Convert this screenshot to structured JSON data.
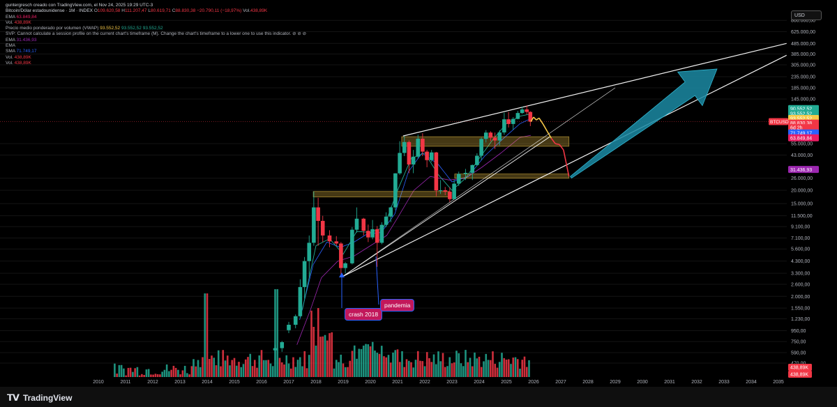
{
  "header": {
    "author_line": "guntergresch creado con TradingView.com, el Nov 24, 2025 19:29 UTC-3",
    "symbol": "Bitcoin/Dólar estadounidense · 1M · INDEX",
    "ohlc": {
      "o_key": "O",
      "o": "109.620,58",
      "h_key": "H",
      "h": "111.207,47",
      "l_key": "L",
      "l": "80.619,71",
      "c_key": "C",
      "c": "88.830,38",
      "chg": "−20.790,11 (−18,97%)",
      "vol_key": "Vol.",
      "vol": "438,89K"
    }
  },
  "indicators": {
    "ema1_key": "EMA",
    "ema1_val": "63.849,84",
    "vol1_key": "Vol.",
    "vol1_val": "438,89K",
    "vwap_key": "Precio medio ponderado por volumen (VWAP)",
    "vwap_v1": "93.552,52",
    "vwap_v2": "93.552,52",
    "vwap_v3": "93.552,52",
    "svp_text": "SVP: Cannot calculate a session profile on the current chart's timeframe (M). Change the chart's timeframe to a lower one to use this indicator.",
    "svp_icons": "⊘ ⊘ ⊘",
    "ema2_key": "EMA",
    "ema2_val": "31.436,93",
    "ema3_key": "EMA",
    "sma_key": "SMA",
    "sma_val": "71.749,17",
    "vol2_key": "Vol.",
    "vol2_val": "438,89K",
    "vol3_key": "Vol.",
    "vol3_val": "438,89K"
  },
  "currency_label": "USD",
  "brand": "TradingView",
  "annotations": {
    "crash": "crash 2018",
    "pandemic": "pandemia"
  },
  "colors": {
    "up": "#22ab94",
    "down": "#f23645",
    "zone": "#f7c948",
    "arrow": "#1b8aa3",
    "background": "#000000"
  },
  "chart_data": {
    "type": "candlestick",
    "title": "",
    "yscale": "log",
    "x_ticks": [
      "2010",
      "2011",
      "2012",
      "2013",
      "2014",
      "2015",
      "2016",
      "2017",
      "2018",
      "2019",
      "2020",
      "2021",
      "2022",
      "2023",
      "2024",
      "2025",
      "2026",
      "2027",
      "2028",
      "2029",
      "2030",
      "2031",
      "2032",
      "2033",
      "2034",
      "2035"
    ],
    "y_ticks": [
      "800.000,00",
      "625.000,00",
      "485.000,00",
      "385.000,00",
      "305.000,00",
      "235.000,00",
      "185.000,00",
      "145.000,00",
      "55.000,00",
      "43.000,00",
      "26.000,00",
      "20.000,00",
      "15.000,00",
      "11.500,00",
      "9.100,00",
      "7.100,00",
      "5.600,00",
      "4.300,00",
      "3.300,00",
      "2.600,00",
      "2.000,00",
      "1.550,00",
      "1.230,00",
      "950,00",
      "750,00",
      "590,00",
      "470,00"
    ],
    "y_tick_values": [
      800000,
      625000,
      485000,
      385000,
      305000,
      235000,
      185000,
      145000,
      55000,
      43000,
      26000,
      20000,
      15000,
      11500,
      9100,
      7100,
      5600,
      4300,
      3300,
      2600,
      2000,
      1550,
      1230,
      950,
      750,
      590,
      470
    ],
    "price_labels": [
      {
        "text": "90.552,52",
        "value": 118000,
        "color": "#22ab94"
      },
      {
        "text": "93.552,52",
        "value": 106000,
        "color": "#22ab94"
      },
      {
        "text": "93.552,52",
        "value": 95000,
        "color": "#f7c948"
      },
      {
        "text": "88.830,38",
        "value": 86000,
        "color": "#f23645"
      },
      {
        "text": "6d 2h",
        "value": 78000,
        "color": "#f23645"
      },
      {
        "text": "71.749,17",
        "value": 69500,
        "color": "#2962ff"
      },
      {
        "text": "63.849,84",
        "value": 62500,
        "color": "#e91e63"
      },
      {
        "text": "31.436,93",
        "value": 31436.93,
        "color": "#9c27b0"
      }
    ],
    "volume_labels": [
      "438,89K",
      "438,89K"
    ],
    "symbol_tag": "BTCUSD",
    "last_price": 88830.38,
    "candles": [
      {
        "t": 2016.5,
        "o": 620,
        "h": 700,
        "l": 500,
        "c": 650
      },
      {
        "t": 2016.75,
        "o": 650,
        "h": 760,
        "l": 600,
        "c": 740
      },
      {
        "t": 2017.0,
        "o": 960,
        "h": 1150,
        "l": 900,
        "c": 1080
      },
      {
        "t": 2017.25,
        "o": 1080,
        "h": 1350,
        "l": 1000,
        "c": 1300
      },
      {
        "t": 2017.42,
        "o": 1300,
        "h": 2900,
        "l": 1250,
        "c": 2450
      },
      {
        "t": 2017.58,
        "o": 2450,
        "h": 4700,
        "l": 1900,
        "c": 4300
      },
      {
        "t": 2017.75,
        "o": 4300,
        "h": 7500,
        "l": 3000,
        "c": 6400
      },
      {
        "t": 2017.92,
        "o": 6400,
        "h": 19500,
        "l": 6000,
        "c": 13800
      },
      {
        "t": 2018.08,
        "o": 13800,
        "h": 17000,
        "l": 6000,
        "c": 10300
      },
      {
        "t": 2018.25,
        "o": 10300,
        "h": 11500,
        "l": 6500,
        "c": 7500
      },
      {
        "t": 2018.5,
        "o": 7500,
        "h": 8400,
        "l": 5800,
        "c": 6600
      },
      {
        "t": 2018.75,
        "o": 6600,
        "h": 7400,
        "l": 6000,
        "c": 6300
      },
      {
        "t": 2018.92,
        "o": 6300,
        "h": 6500,
        "l": 3150,
        "c": 3700
      },
      {
        "t": 2019.08,
        "o": 3700,
        "h": 4200,
        "l": 3300,
        "c": 4100
      },
      {
        "t": 2019.33,
        "o": 4100,
        "h": 9000,
        "l": 4000,
        "c": 8500
      },
      {
        "t": 2019.5,
        "o": 8500,
        "h": 13800,
        "l": 8000,
        "c": 10800
      },
      {
        "t": 2019.75,
        "o": 10800,
        "h": 11000,
        "l": 7500,
        "c": 8300
      },
      {
        "t": 2019.92,
        "o": 8300,
        "h": 9500,
        "l": 6500,
        "c": 7200
      },
      {
        "t": 2020.08,
        "o": 7200,
        "h": 10500,
        "l": 6900,
        "c": 8600
      },
      {
        "t": 2020.25,
        "o": 8600,
        "h": 9200,
        "l": 3800,
        "c": 6400
      },
      {
        "t": 2020.42,
        "o": 6400,
        "h": 10000,
        "l": 6200,
        "c": 9450
      },
      {
        "t": 2020.58,
        "o": 9450,
        "h": 12400,
        "l": 9000,
        "c": 11300
      },
      {
        "t": 2020.75,
        "o": 11300,
        "h": 14000,
        "l": 10000,
        "c": 13800
      },
      {
        "t": 2020.92,
        "o": 13800,
        "h": 29000,
        "l": 13000,
        "c": 28900
      },
      {
        "t": 2021.08,
        "o": 28900,
        "h": 58000,
        "l": 28000,
        "c": 45000
      },
      {
        "t": 2021.25,
        "o": 45000,
        "h": 64800,
        "l": 42000,
        "c": 57000
      },
      {
        "t": 2021.42,
        "o": 57000,
        "h": 59000,
        "l": 29000,
        "c": 35000
      },
      {
        "t": 2021.58,
        "o": 35000,
        "h": 48000,
        "l": 29000,
        "c": 41500
      },
      {
        "t": 2021.75,
        "o": 41500,
        "h": 67000,
        "l": 40000,
        "c": 61300
      },
      {
        "t": 2021.92,
        "o": 61300,
        "h": 69000,
        "l": 42000,
        "c": 46300
      },
      {
        "t": 2022.08,
        "o": 46300,
        "h": 48000,
        "l": 33000,
        "c": 38500
      },
      {
        "t": 2022.25,
        "o": 38500,
        "h": 48000,
        "l": 37000,
        "c": 45500
      },
      {
        "t": 2022.42,
        "o": 45500,
        "h": 46000,
        "l": 17600,
        "c": 19900
      },
      {
        "t": 2022.58,
        "o": 19900,
        "h": 25000,
        "l": 18500,
        "c": 20000
      },
      {
        "t": 2022.75,
        "o": 20000,
        "h": 21500,
        "l": 18000,
        "c": 19400
      },
      {
        "t": 2022.92,
        "o": 19400,
        "h": 21400,
        "l": 15500,
        "c": 16500
      },
      {
        "t": 2023.08,
        "o": 16500,
        "h": 25000,
        "l": 16500,
        "c": 23100
      },
      {
        "t": 2023.25,
        "o": 23100,
        "h": 30000,
        "l": 22000,
        "c": 28500
      },
      {
        "t": 2023.5,
        "o": 28500,
        "h": 31800,
        "l": 25000,
        "c": 29200
      },
      {
        "t": 2023.75,
        "o": 29200,
        "h": 35000,
        "l": 25000,
        "c": 34600
      },
      {
        "t": 2023.92,
        "o": 34600,
        "h": 44700,
        "l": 34000,
        "c": 42300
      },
      {
        "t": 2024.08,
        "o": 42300,
        "h": 63000,
        "l": 38500,
        "c": 61000
      },
      {
        "t": 2024.25,
        "o": 61000,
        "h": 73800,
        "l": 56500,
        "c": 70000
      },
      {
        "t": 2024.42,
        "o": 70000,
        "h": 72000,
        "l": 58000,
        "c": 62700
      },
      {
        "t": 2024.58,
        "o": 62700,
        "h": 70000,
        "l": 49000,
        "c": 59000
      },
      {
        "t": 2024.75,
        "o": 59000,
        "h": 73600,
        "l": 53000,
        "c": 70200
      },
      {
        "t": 2024.92,
        "o": 70200,
        "h": 108000,
        "l": 66800,
        "c": 93400
      },
      {
        "t": 2025.08,
        "o": 93400,
        "h": 109500,
        "l": 78200,
        "c": 84400
      },
      {
        "t": 2025.25,
        "o": 84400,
        "h": 97800,
        "l": 74400,
        "c": 94200
      },
      {
        "t": 2025.42,
        "o": 94200,
        "h": 112000,
        "l": 93400,
        "c": 107100
      },
      {
        "t": 2025.58,
        "o": 107100,
        "h": 123000,
        "l": 105100,
        "c": 115700
      },
      {
        "t": 2025.75,
        "o": 115700,
        "h": 126200,
        "l": 104000,
        "c": 109600
      },
      {
        "t": 2025.88,
        "o": 109600,
        "h": 111200,
        "l": 80600,
        "c": 88800
      }
    ],
    "projection": [
      {
        "t": 2025.9,
        "v": 88800
      },
      {
        "t": 2026.0,
        "v": 98000
      },
      {
        "t": 2026.1,
        "v": 92000
      },
      {
        "t": 2026.2,
        "v": 96000
      },
      {
        "t": 2026.35,
        "v": 84000
      },
      {
        "t": 2026.5,
        "v": 72000
      },
      {
        "t": 2026.65,
        "v": 62000
      },
      {
        "t": 2026.8,
        "v": 55000
      },
      {
        "t": 2026.95,
        "v": 54000
      },
      {
        "t": 2027.1,
        "v": 48000
      },
      {
        "t": 2027.2,
        "v": 36000
      },
      {
        "t": 2027.3,
        "v": 27000
      }
    ],
    "zones": [
      {
        "t0": 2021.15,
        "t1": 2027.3,
        "low": 52000,
        "high": 64000
      },
      {
        "t0": 2023.1,
        "t1": 2027.3,
        "low": 26000,
        "high": 28500
      },
      {
        "t0": 2017.9,
        "t1": 2022.9,
        "low": 17300,
        "high": 19500
      }
    ]
  }
}
